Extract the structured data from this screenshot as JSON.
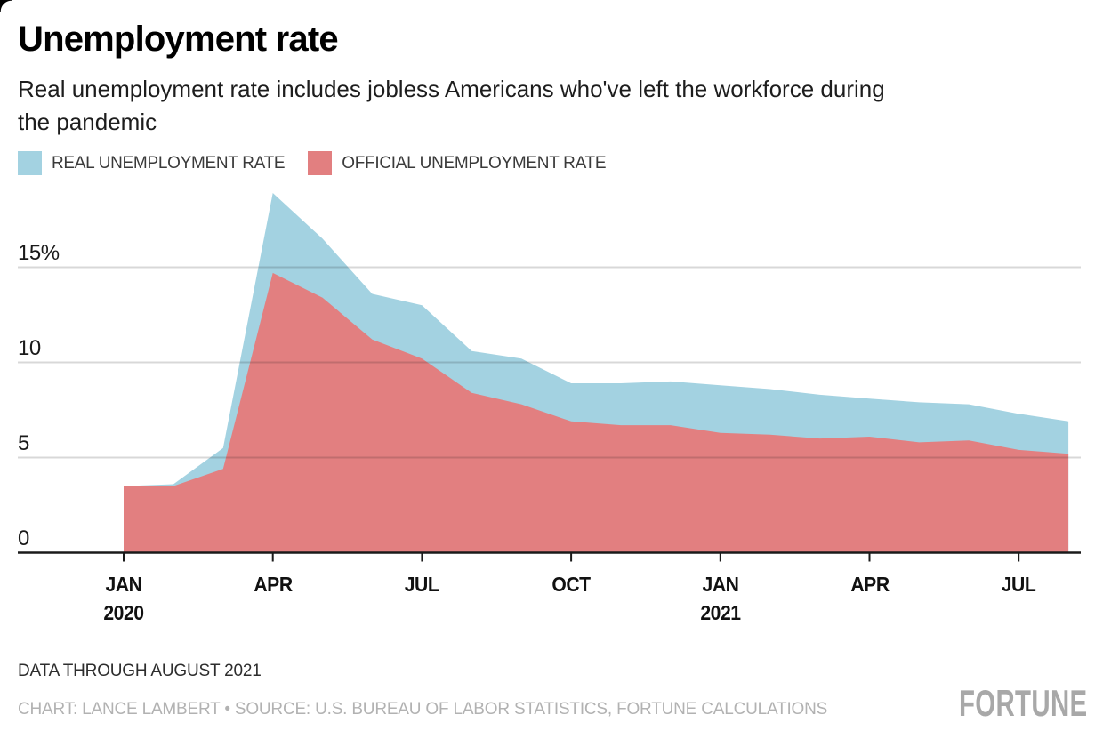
{
  "page": {
    "background": "#ffffff"
  },
  "header": {
    "title": "Unemployment rate",
    "subtitle": "Real unemployment rate includes jobless Americans who've left the workforce during\nthe pandemic"
  },
  "legend": [
    {
      "label": "REAL UNEMPLOYMENT RATE",
      "color": "#a3d2e1"
    },
    {
      "label": "OFFICIAL UNEMPLOYMENT RATE",
      "color": "#e27f80"
    }
  ],
  "chart_data": {
    "type": "area",
    "title": "Unemployment rate",
    "xlabel": "",
    "ylabel": "Unemployment rate (%)",
    "ylim": [
      0,
      19
    ],
    "grid": "horizontal",
    "legend_position": "top",
    "x": [
      "JAN 2020",
      "FEB 2020",
      "MAR 2020",
      "APR 2020",
      "MAY 2020",
      "JUN 2020",
      "JUL 2020",
      "AUG 2020",
      "SEP 2020",
      "OCT 2020",
      "NOV 2020",
      "DEC 2020",
      "JAN 2021",
      "FEB 2021",
      "MAR 2021",
      "APR 2021",
      "MAY 2021",
      "JUN 2021",
      "JUL 2021",
      "AUG 2021"
    ],
    "series": [
      {
        "name": "Real unemployment rate",
        "color": "#a3d2e1",
        "values": [
          3.5,
          3.6,
          5.5,
          18.9,
          16.5,
          13.6,
          13.0,
          10.6,
          10.2,
          8.9,
          8.9,
          9.0,
          8.8,
          8.6,
          8.3,
          8.1,
          7.9,
          7.8,
          7.3,
          6.9
        ]
      },
      {
        "name": "Official unemployment rate",
        "color": "#e27f80",
        "values": [
          3.5,
          3.5,
          4.4,
          14.7,
          13.4,
          11.2,
          10.2,
          8.4,
          7.8,
          6.9,
          6.7,
          6.7,
          6.3,
          6.2,
          6.0,
          6.1,
          5.8,
          5.9,
          5.4,
          5.2
        ]
      }
    ],
    "y_ticks": [
      {
        "value": 0,
        "label": "0"
      },
      {
        "value": 5,
        "label": "5"
      },
      {
        "value": 10,
        "label": "10"
      },
      {
        "value": 15,
        "label": "15%"
      }
    ],
    "x_ticks": [
      {
        "index": 0,
        "label": "JAN",
        "sublabel": "2020"
      },
      {
        "index": 3,
        "label": "APR"
      },
      {
        "index": 6,
        "label": "JUL"
      },
      {
        "index": 9,
        "label": "OCT"
      },
      {
        "index": 12,
        "label": "JAN",
        "sublabel": "2021"
      },
      {
        "index": 15,
        "label": "APR"
      },
      {
        "index": 18,
        "label": "JUL"
      }
    ]
  },
  "footer": {
    "note": "DATA THROUGH AUGUST 2021",
    "credit": "CHART: LANCE LAMBERT • SOURCE: U.S. BUREAU OF LABOR STATISTICS, FORTUNE CALCULATIONS",
    "logo": "FORTUNE"
  },
  "colors": {
    "real_area": "#a3d2e1",
    "official_area": "#e27f80",
    "gridline": "rgba(26,26,26,0.17)",
    "axis": "#1a1a1a"
  }
}
